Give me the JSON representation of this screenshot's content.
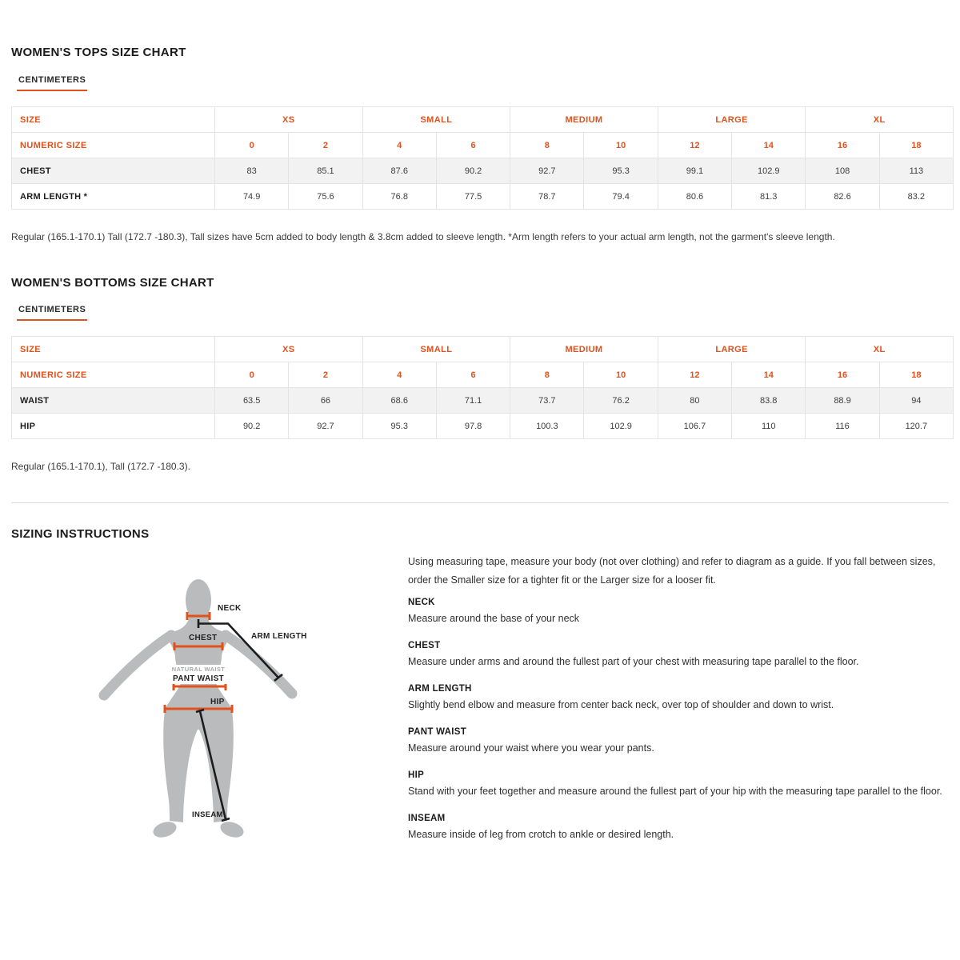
{
  "accent_color": "#e0511c",
  "tops_chart": {
    "title": "WOMEN'S TOPS SIZE CHART",
    "unit_tab": "CENTIMETERS",
    "table": {
      "size_label": "SIZE",
      "numeric_size_label": "NUMERIC SIZE",
      "size_groups": [
        "XS",
        "SMALL",
        "MEDIUM",
        "LARGE",
        "XL"
      ],
      "numeric_sizes": [
        "0",
        "2",
        "4",
        "6",
        "8",
        "10",
        "12",
        "14",
        "16",
        "18"
      ],
      "rows": [
        {
          "label": "CHEST",
          "values": [
            "83",
            "85.1",
            "87.6",
            "90.2",
            "92.7",
            "95.3",
            "99.1",
            "102.9",
            "108",
            "113"
          ]
        },
        {
          "label": "ARM LENGTH *",
          "values": [
            "74.9",
            "75.6",
            "76.8",
            "77.5",
            "78.7",
            "79.4",
            "80.6",
            "81.3",
            "82.6",
            "83.2"
          ]
        }
      ]
    },
    "footnote": "Regular (165.1-170.1) Tall (172.7 -180.3), Tall sizes have 5cm added to body length & 3.8cm added to sleeve length. *Arm length refers to your actual arm length, not the garment's sleeve length."
  },
  "bottoms_chart": {
    "title": "WOMEN'S BOTTOMS SIZE CHART",
    "unit_tab": "CENTIMETERS",
    "table": {
      "size_label": "SIZE",
      "numeric_size_label": "NUMERIC SIZE",
      "size_groups": [
        "XS",
        "SMALL",
        "MEDIUM",
        "LARGE",
        "XL"
      ],
      "numeric_sizes": [
        "0",
        "2",
        "4",
        "6",
        "8",
        "10",
        "12",
        "14",
        "16",
        "18"
      ],
      "rows": [
        {
          "label": "WAIST",
          "values": [
            "63.5",
            "66",
            "68.6",
            "71.1",
            "73.7",
            "76.2",
            "80",
            "83.8",
            "88.9",
            "94"
          ]
        },
        {
          "label": "HIP",
          "values": [
            "90.2",
            "92.7",
            "95.3",
            "97.8",
            "100.3",
            "102.9",
            "106.7",
            "110",
            "116",
            "120.7"
          ]
        }
      ]
    },
    "footnote": "Regular (165.1-170.1), Tall (172.7 -180.3)."
  },
  "sizing_instructions": {
    "title": "SIZING INSTRUCTIONS",
    "intro": "Using measuring tape, measure your body (not over clothing) and refer to diagram as a guide. If you fall between sizes, order the Smaller size for a tighter fit or the Larger size for a looser fit.",
    "items": [
      {
        "heading": "NECK",
        "text": "Measure around the base of your neck"
      },
      {
        "heading": "CHEST",
        "text": "Measure under arms and around the fullest part of your chest with measuring tape parallel to the floor."
      },
      {
        "heading": "ARM LENGTH",
        "text": "Slightly bend elbow and measure from center back neck, over top of shoulder and down to wrist."
      },
      {
        "heading": "PANT WAIST",
        "text": "Measure around your waist where you wear your pants."
      },
      {
        "heading": "HIP",
        "text": "Stand with your feet together and measure around the fullest part of your hip with the measuring tape parallel to the floor."
      },
      {
        "heading": "INSEAM",
        "text": "Measure inside of leg from crotch to ankle or desired length."
      }
    ],
    "diagram_labels": {
      "neck": "NECK",
      "chest": "CHEST",
      "arm_length": "ARM LENGTH",
      "natural_waist": "NATURAL WAIST",
      "pant_waist": "PANT WAIST",
      "hip": "HIP",
      "inseam": "INSEAM"
    }
  }
}
